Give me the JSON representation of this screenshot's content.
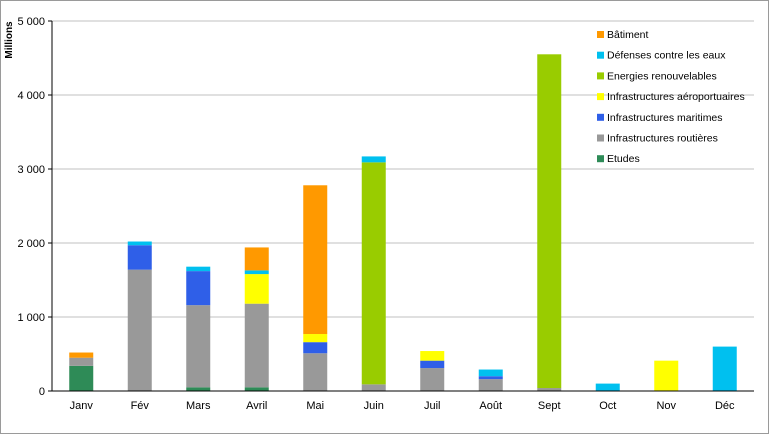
{
  "chart_data": {
    "type": "bar",
    "stacked": true,
    "ylabel": "Millions",
    "xlabel": "",
    "ylim": [
      0,
      5000
    ],
    "yticks": [
      0,
      1000,
      2000,
      3000,
      4000,
      5000
    ],
    "ytick_labels": [
      "0",
      "1 000",
      "2 000",
      "3 000",
      "4 000",
      "5 000"
    ],
    "grid": true,
    "legend_position": "right",
    "categories": [
      "Janv",
      "Fév",
      "Mars",
      "Avril",
      "Mai",
      "Juin",
      "Juil",
      "Août",
      "Sept",
      "Oct",
      "Nov",
      "Déc"
    ],
    "series": [
      {
        "name": "Etudes",
        "color": "#2e8b57",
        "values": [
          340,
          0,
          50,
          50,
          0,
          0,
          0,
          0,
          0,
          0,
          0,
          0
        ]
      },
      {
        "name": "Infrastructures routières",
        "color": "#999999",
        "values": [
          110,
          1640,
          1110,
          1130,
          510,
          90,
          310,
          160,
          40,
          0,
          0,
          0
        ]
      },
      {
        "name": "Infrastructures maritimes",
        "color": "#2f5fe8",
        "values": [
          0,
          330,
          460,
          0,
          150,
          0,
          100,
          40,
          0,
          0,
          0,
          0
        ]
      },
      {
        "name": "Infrastructures aéroportuaires",
        "color": "#ffff00",
        "values": [
          0,
          0,
          0,
          400,
          110,
          0,
          130,
          0,
          0,
          0,
          410,
          0
        ]
      },
      {
        "name": "Energies renouvelables",
        "color": "#99cc00",
        "values": [
          0,
          0,
          0,
          0,
          0,
          3000,
          0,
          0,
          4510,
          0,
          0,
          0
        ]
      },
      {
        "name": "Défenses contre les eaux",
        "color": "#00c0ef",
        "values": [
          0,
          50,
          60,
          50,
          0,
          80,
          0,
          90,
          0,
          100,
          0,
          600
        ]
      },
      {
        "name": "Bâtiment",
        "color": "#ff9900",
        "values": [
          70,
          0,
          0,
          310,
          2010,
          0,
          0,
          0,
          0,
          0,
          0,
          0
        ]
      }
    ],
    "legend_order": [
      "Bâtiment",
      "Défenses contre les eaux",
      "Energies renouvelables",
      "Infrastructures aéroportuaires",
      "Infrastructures maritimes",
      "Infrastructures routières",
      "Etudes"
    ]
  }
}
